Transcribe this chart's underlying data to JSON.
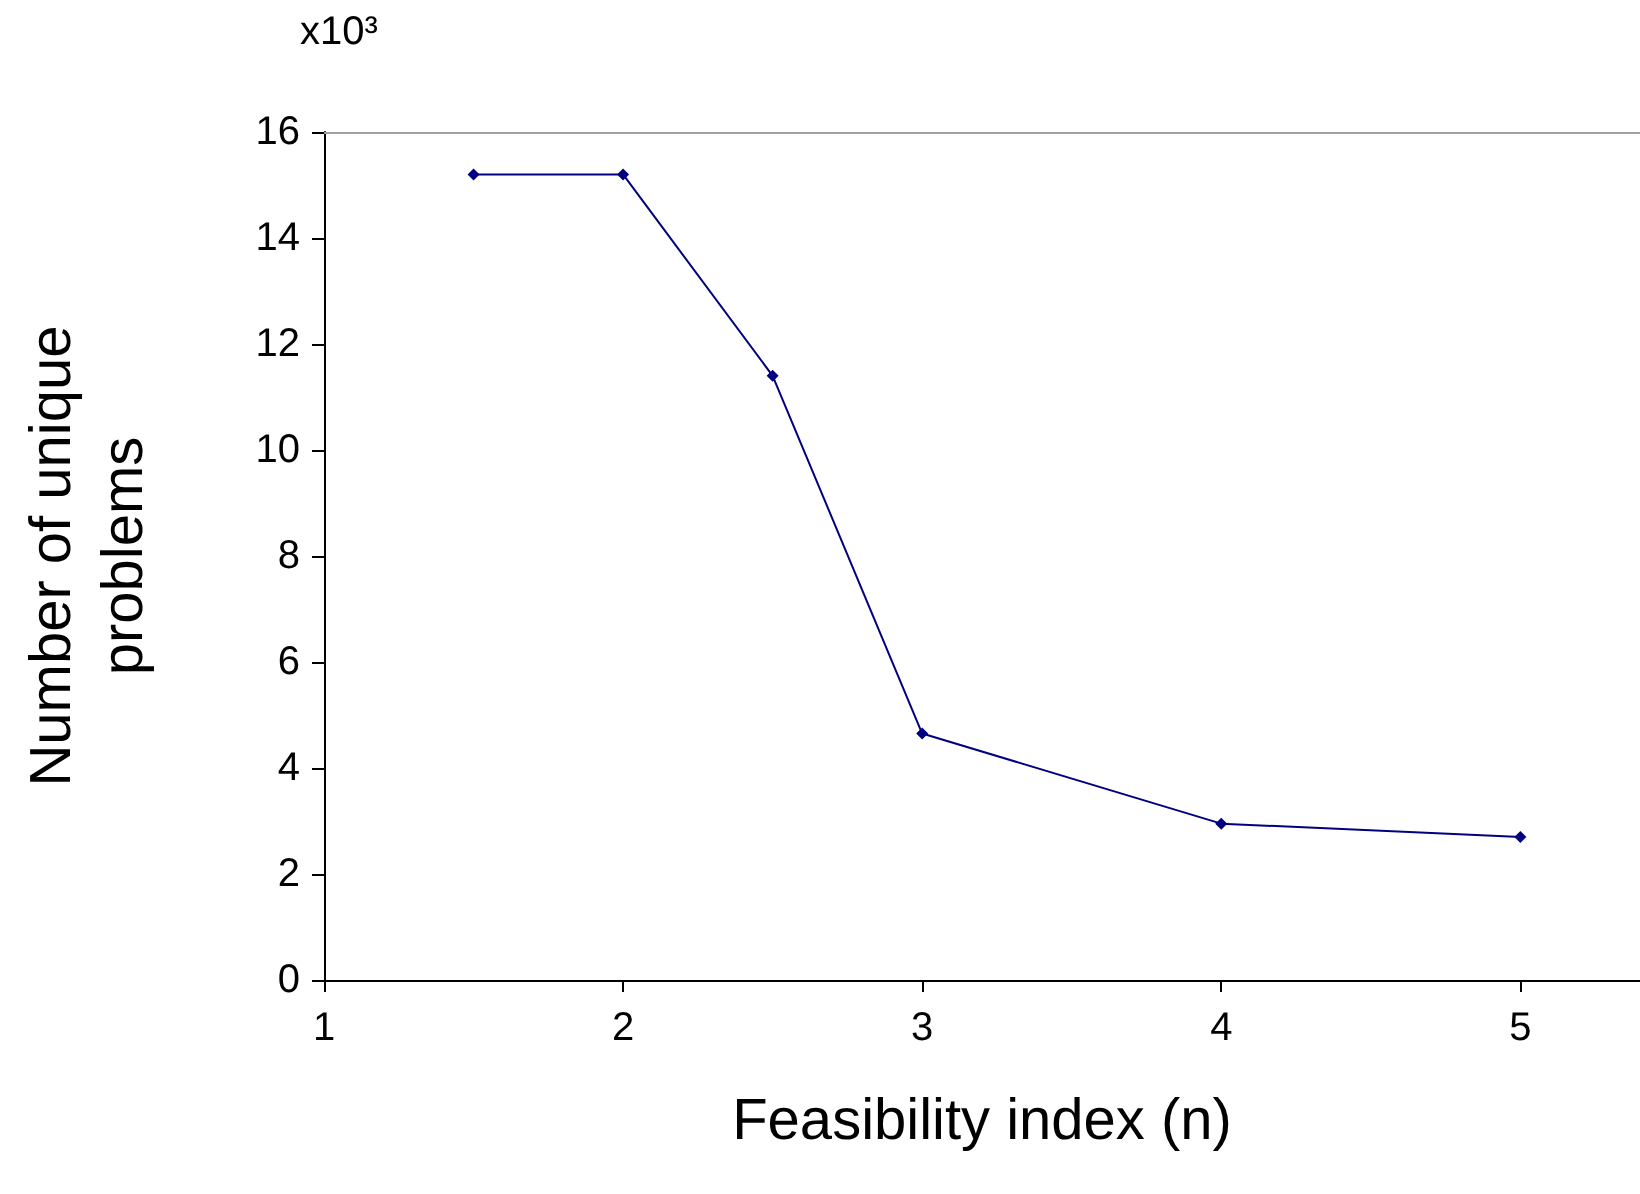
{
  "chart_data": {
    "type": "line",
    "xlabel": "Feasibility index (n)",
    "ylabel": "Number of unique\nproblems",
    "annotations": [
      "x10³"
    ],
    "x": [
      1.5,
      2,
      2.5,
      3,
      4,
      5
    ],
    "series": [
      {
        "color": "#000080",
        "values": [
          15.2,
          15.2,
          11.4,
          4.65,
          2.95,
          2.7
        ]
      }
    ],
    "xlim": [
      1,
      5.4
    ],
    "xticks": [
      1,
      2,
      3,
      4,
      5
    ],
    "ylim": [
      0,
      16
    ],
    "yticks": [
      0,
      2,
      4,
      6,
      8,
      10,
      12,
      14,
      16
    ],
    "ref_lines": [
      {
        "axis": "y",
        "value": 16,
        "color": "#a0a0a0"
      }
    ],
    "grid": false,
    "marker": "diamond",
    "line_style": "solid"
  }
}
